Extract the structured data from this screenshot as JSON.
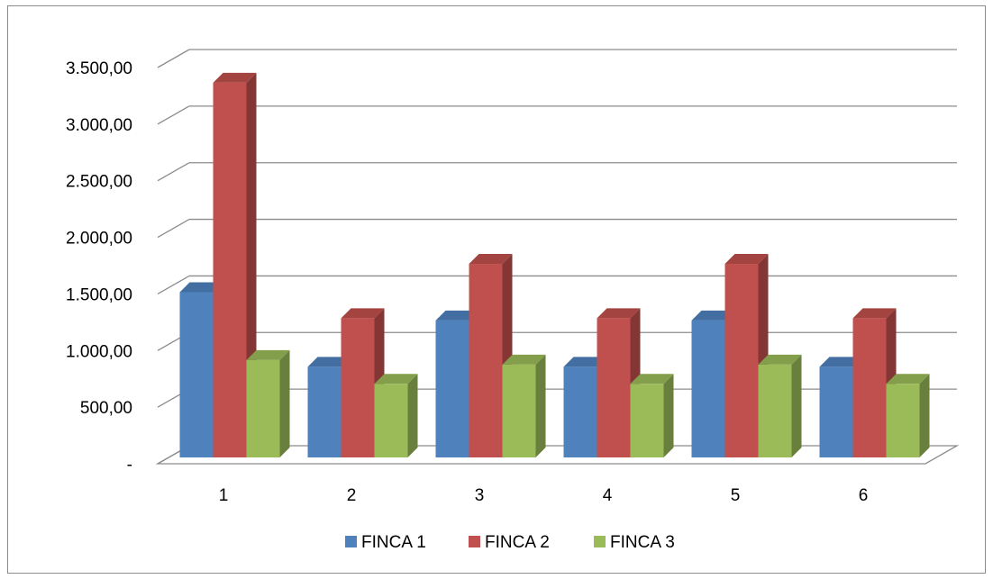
{
  "chart_data": {
    "type": "bar",
    "style": "3d-clustered-column",
    "categories": [
      "1",
      "2",
      "3",
      "4",
      "5",
      "6"
    ],
    "series": [
      {
        "name": "FINCA 1",
        "color": "#4F81BD",
        "values": [
          1460,
          800,
          1210,
          800,
          1210,
          800
        ]
      },
      {
        "name": "FINCA 2",
        "color": "#C0504D",
        "values": [
          3310,
          1230,
          1710,
          1230,
          1710,
          1230
        ]
      },
      {
        "name": "FINCA 3",
        "color": "#9BBB59",
        "values": [
          860,
          650,
          820,
          650,
          820,
          650
        ]
      }
    ],
    "ylim": [
      0,
      3500
    ],
    "y_ticks": [
      0,
      500,
      1000,
      1500,
      2000,
      2500,
      3000,
      3500
    ],
    "y_tick_labels": [
      "-",
      "500,00",
      "1.000,00",
      "1.500,00",
      "2.000,00",
      "2.500,00",
      "3.000,00",
      "3.500,00"
    ],
    "title": "",
    "xlabel": "",
    "ylabel": "",
    "grid": true,
    "legend_position": "bottom"
  }
}
